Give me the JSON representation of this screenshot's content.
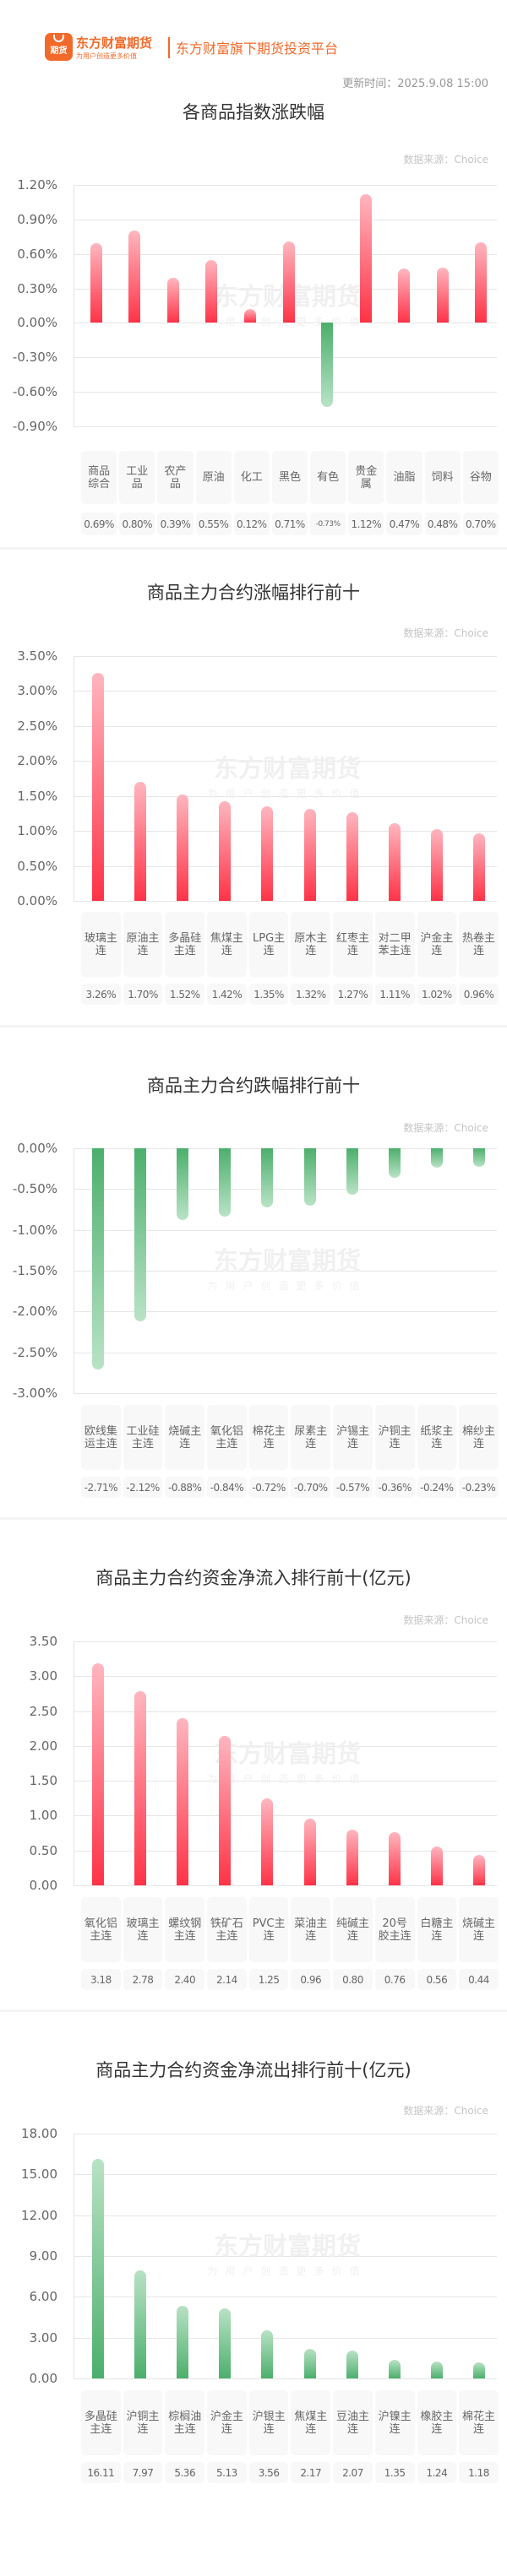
{
  "header": {
    "logo_text": "期货",
    "brand_name": "东方财富期货",
    "brand_slogan": "为用户创造更多价值",
    "tagline": "东方财富旗下期货投资平台",
    "update_time": "更新时间：2025.9.08 15:00"
  },
  "watermark": {
    "main": "东方财富期货",
    "sub": "为用户创造更多价值"
  },
  "colors": {
    "brand": "#f26a2b",
    "up": "#ff3347",
    "down": "#4caf6c",
    "grid": "#e6e6e6"
  },
  "sections": [
    {
      "title": "各商品指数涨跌幅",
      "source": "数据来源：Choice",
      "yticks": [
        "1.20%",
        "0.90%",
        "0.60%",
        "0.30%",
        "0.00%",
        "-0.30%",
        "-0.60%",
        "-0.90%"
      ],
      "labels": [
        "商品综合",
        "工业品",
        "农产品",
        "原油",
        "化工",
        "黑色",
        "有色",
        "贵金属",
        "油脂",
        "饲料",
        "谷物"
      ],
      "values": [
        "0.69%",
        "0.80%",
        "0.39%",
        "0.55%",
        "0.12%",
        "0.71%",
        "-0.73%",
        "1.12%",
        "0.47%",
        "0.48%",
        "0.70%"
      ]
    },
    {
      "title": "商品主力合约涨幅排行前十",
      "source": "数据来源：Choice",
      "yticks": [
        "3.50%",
        "3.00%",
        "2.50%",
        "2.00%",
        "1.50%",
        "1.00%",
        "0.50%",
        "0.00%"
      ],
      "labels": [
        "玻璃主连",
        "原油主连",
        "多晶硅主连",
        "焦煤主连",
        "LPG主连",
        "原木主连",
        "红枣主连",
        "对二甲苯主连",
        "沪金主连",
        "热卷主连"
      ],
      "values": [
        "3.26%",
        "1.70%",
        "1.52%",
        "1.42%",
        "1.35%",
        "1.32%",
        "1.27%",
        "1.11%",
        "1.02%",
        "0.96%"
      ]
    },
    {
      "title": "商品主力合约跌幅排行前十",
      "source": "数据来源：Choice",
      "yticks": [
        "0.00%",
        "-0.50%",
        "-1.00%",
        "-1.50%",
        "-2.00%",
        "-2.50%",
        "-3.00%"
      ],
      "labels": [
        "欧线集运主连",
        "工业硅主连",
        "烧碱主连",
        "氧化铝主连",
        "棉花主连",
        "尿素主连",
        "沪锡主连",
        "沪铜主连",
        "纸浆主连",
        "棉纱主连"
      ],
      "values": [
        "-2.71%",
        "-2.12%",
        "-0.88%",
        "-0.84%",
        "-0.72%",
        "-0.70%",
        "-0.57%",
        "-0.36%",
        "-0.24%",
        "-0.23%"
      ]
    },
    {
      "title": "商品主力合约资金净流入排行前十(亿元)",
      "source": "数据来源：Choice",
      "yticks": [
        "3.50",
        "3.00",
        "2.50",
        "2.00",
        "1.50",
        "1.00",
        "0.50",
        "0.00"
      ],
      "labels": [
        "氧化铝主连",
        "玻璃主连",
        "螺纹钢主连",
        "铁矿石主连",
        "PVC主连",
        "菜油主连",
        "纯碱主连",
        "20号胶主连",
        "白糖主连",
        "烧碱主连"
      ],
      "values": [
        "3.18",
        "2.78",
        "2.40",
        "2.14",
        "1.25",
        "0.96",
        "0.80",
        "0.76",
        "0.56",
        "0.44"
      ]
    },
    {
      "title": "商品主力合约资金净流出排行前十(亿元)",
      "source": "数据来源：Choice",
      "yticks": [
        "18.00",
        "15.00",
        "12.00",
        "9.00",
        "6.00",
        "3.00",
        "0.00"
      ],
      "labels": [
        "多晶硅主连",
        "沪铜主连",
        "棕榈油主连",
        "沪金主连",
        "沪银主连",
        "焦煤主连",
        "豆油主连",
        "沪镍主连",
        "橡胶主连",
        "棉花主连"
      ],
      "values": [
        "16.11",
        "7.97",
        "5.36",
        "5.13",
        "3.56",
        "2.17",
        "2.07",
        "1.35",
        "1.24",
        "1.18"
      ]
    }
  ],
  "chart_data": [
    {
      "type": "bar",
      "title": "各商品指数涨跌幅",
      "categories": [
        "商品综合",
        "工业品",
        "农产品",
        "原油",
        "化工",
        "黑色",
        "有色",
        "贵金属",
        "油脂",
        "饲料",
        "谷物"
      ],
      "values": [
        0.69,
        0.8,
        0.39,
        0.55,
        0.12,
        0.71,
        -0.73,
        1.12,
        0.47,
        0.48,
        0.7
      ],
      "xlabel": "",
      "ylabel": "%",
      "ylim": [
        -0.9,
        1.2
      ],
      "yticks": [
        "1.20%",
        "0.90%",
        "0.60%",
        "0.30%",
        "0.00%",
        "-0.30%",
        "-0.60%",
        "-0.90%"
      ],
      "grid": true,
      "legend": "none",
      "source": "数据来源：Choice"
    },
    {
      "type": "bar",
      "title": "商品主力合约涨幅排行前十",
      "categories": [
        "玻璃主连",
        "原油主连",
        "多晶硅主连",
        "焦煤主连",
        "LPG主连",
        "原木主连",
        "红枣主连",
        "对二甲苯主连",
        "沪金主连",
        "热卷主连"
      ],
      "values": [
        3.26,
        1.7,
        1.52,
        1.42,
        1.35,
        1.32,
        1.27,
        1.11,
        1.02,
        0.96
      ],
      "xlabel": "",
      "ylabel": "%",
      "ylim": [
        0,
        3.5
      ],
      "yticks": [
        "3.50%",
        "3.00%",
        "2.50%",
        "2.00%",
        "1.50%",
        "1.00%",
        "0.50%",
        "0.00%"
      ],
      "grid": true,
      "legend": "none",
      "source": "数据来源：Choice"
    },
    {
      "type": "bar",
      "title": "商品主力合约跌幅排行前十",
      "categories": [
        "欧线集运主连",
        "工业硅主连",
        "烧碱主连",
        "氧化铝主连",
        "棉花主连",
        "尿素主连",
        "沪锡主连",
        "沪铜主连",
        "纸浆主连",
        "棉纱主连"
      ],
      "values": [
        -2.71,
        -2.12,
        -0.88,
        -0.84,
        -0.72,
        -0.7,
        -0.57,
        -0.36,
        -0.24,
        -0.23
      ],
      "xlabel": "",
      "ylabel": "%",
      "ylim": [
        -3.0,
        0
      ],
      "yticks": [
        "0.00%",
        "-0.50%",
        "-1.00%",
        "-1.50%",
        "-2.00%",
        "-2.50%",
        "-3.00%"
      ],
      "grid": true,
      "legend": "none",
      "source": "数据来源：Choice"
    },
    {
      "type": "bar",
      "title": "商品主力合约资金净流入排行前十(亿元)",
      "categories": [
        "氧化铝主连",
        "玻璃主连",
        "螺纹钢主连",
        "铁矿石主连",
        "PVC主连",
        "菜油主连",
        "纯碱主连",
        "20号胶主连",
        "白糖主连",
        "烧碱主连"
      ],
      "values": [
        3.18,
        2.78,
        2.4,
        2.14,
        1.25,
        0.96,
        0.8,
        0.76,
        0.56,
        0.44
      ],
      "xlabel": "",
      "ylabel": "亿元",
      "ylim": [
        0,
        3.5
      ],
      "yticks": [
        "3.50",
        "3.00",
        "2.50",
        "2.00",
        "1.50",
        "1.00",
        "0.50",
        "0.00"
      ],
      "grid": true,
      "legend": "none",
      "source": "数据来源：Choice"
    },
    {
      "type": "bar",
      "title": "商品主力合约资金净流出排行前十(亿元)",
      "categories": [
        "多晶硅主连",
        "沪铜主连",
        "棕榈油主连",
        "沪金主连",
        "沪银主连",
        "焦煤主连",
        "豆油主连",
        "沪镍主连",
        "橡胶主连",
        "棉花主连"
      ],
      "values": [
        16.11,
        7.97,
        5.36,
        5.13,
        3.56,
        2.17,
        2.07,
        1.35,
        1.24,
        1.18
      ],
      "xlabel": "",
      "ylabel": "亿元",
      "ylim": [
        0,
        18.0
      ],
      "yticks": [
        "18.00",
        "15.00",
        "12.00",
        "9.00",
        "6.00",
        "3.00",
        "0.00"
      ],
      "grid": true,
      "legend": "none",
      "source": "数据来源：Choice"
    }
  ]
}
